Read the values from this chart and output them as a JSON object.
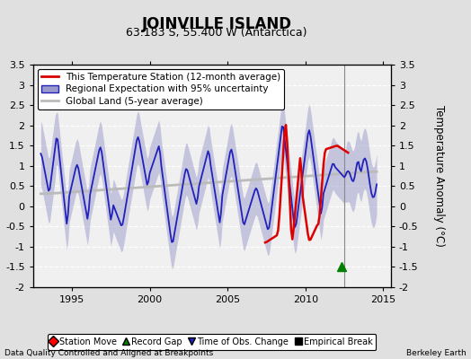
{
  "title": "JOINVILLE ISLAND",
  "subtitle": "63.183 S, 55.400 W (Antarctica)",
  "ylabel": "Temperature Anomaly (°C)",
  "footer_left": "Data Quality Controlled and Aligned at Breakpoints",
  "footer_right": "Berkeley Earth",
  "xlim": [
    1992.5,
    2015.5
  ],
  "ylim": [
    -2.0,
    3.5
  ],
  "yticks": [
    -2,
    -1.5,
    -1,
    -0.5,
    0,
    0.5,
    1,
    1.5,
    2,
    2.5,
    3,
    3.5
  ],
  "xticks": [
    1995,
    2000,
    2005,
    2010,
    2015
  ],
  "vertical_line_x": 2012.5,
  "record_gap_marker_x": 2012.3,
  "record_gap_marker_y": -1.5,
  "bg_color": "#e0e0e0",
  "plot_bg_color": "#f0f0f0",
  "blue_line_color": "#2222bb",
  "blue_fill_color": "#9999cc",
  "red_line_color": "#dd0000",
  "gray_line_color": "#bbbbbb",
  "title_fontsize": 12,
  "subtitle_fontsize": 9,
  "axis_fontsize": 8,
  "legend_fontsize": 7.5
}
